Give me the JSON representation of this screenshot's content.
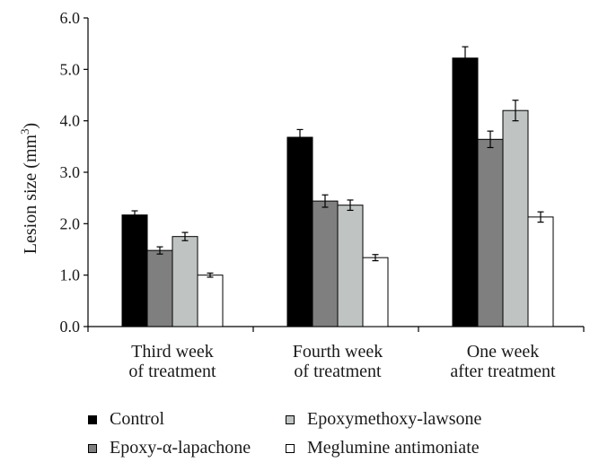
{
  "chart_data": {
    "type": "bar",
    "title": "",
    "xlabel": "",
    "ylabel": "Lesion size (mm3)",
    "ylabel_main": "Lesion size (mm",
    "ylabel_sup": "3",
    "ylabel_end": ")",
    "ylim": [
      0,
      6
    ],
    "yticks": [
      "0.0",
      "1.0",
      "2.0",
      "3.0",
      "4.0",
      "5.0",
      "6.0"
    ],
    "categories": [
      [
        "Third week",
        "of treatment"
      ],
      [
        "Fourth week",
        "of treatment"
      ],
      [
        "One week",
        "after treatment"
      ]
    ],
    "series": [
      {
        "name": "Control",
        "color": "#000000",
        "values": [
          2.17,
          3.68,
          5.22
        ],
        "errors": [
          0.08,
          0.15,
          0.22
        ]
      },
      {
        "name": "Epoxy-α-lapachone",
        "color": "#7f7f7f",
        "values": [
          1.48,
          2.44,
          3.64
        ],
        "errors": [
          0.07,
          0.12,
          0.16
        ]
      },
      {
        "name": "Epoxymethoxy-lawsone",
        "color": "#bfc4c3",
        "values": [
          1.75,
          2.36,
          4.2
        ],
        "errors": [
          0.08,
          0.1,
          0.2
        ]
      },
      {
        "name": "Meglumine antimoniate",
        "color": "#ffffff",
        "values": [
          1.0,
          1.34,
          2.13
        ],
        "errors": [
          0.04,
          0.06,
          0.1
        ]
      }
    ],
    "legend": {
      "placement": "bottom",
      "columns": 2
    }
  }
}
